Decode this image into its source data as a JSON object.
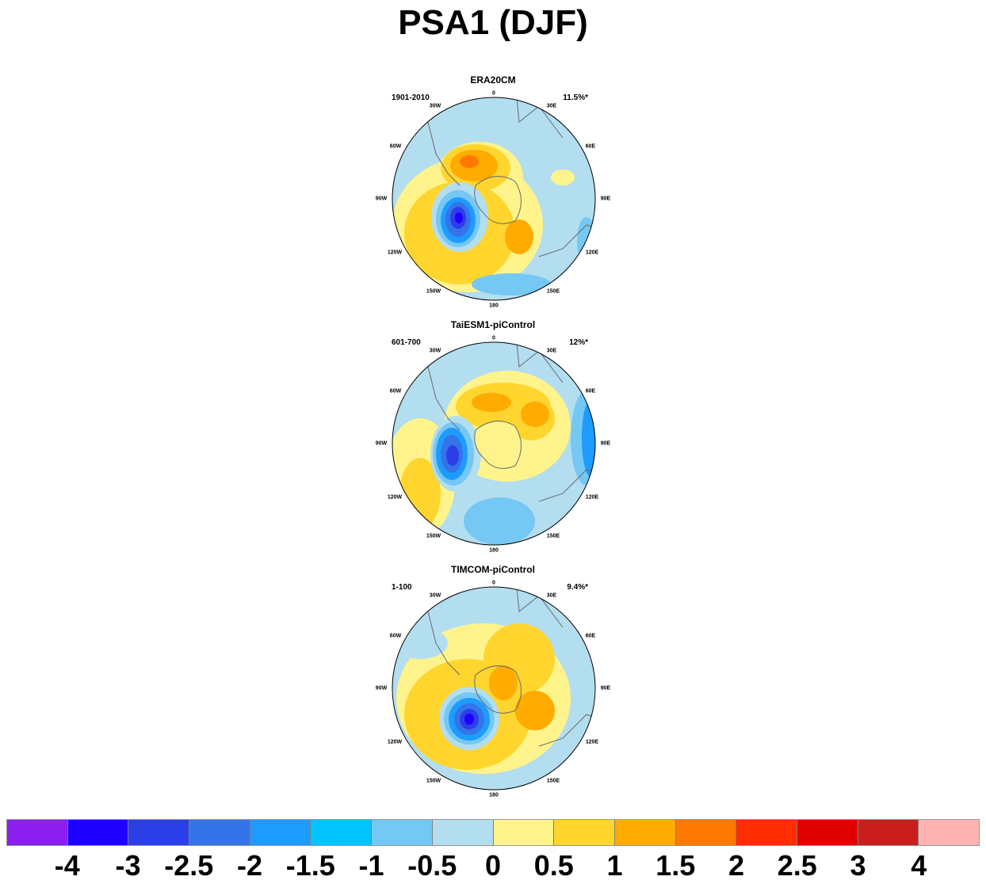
{
  "title": "PSA1 (DJF)",
  "panels": [
    {
      "title": "ERA20CM",
      "period": "1901-2010",
      "percent": "11.5%*"
    },
    {
      "title": "TaiESM1-piControl",
      "period": "601-700",
      "percent": "12%*"
    },
    {
      "title": "TIMCOM-piControl",
      "period": "1-100",
      "percent": "9.4%*"
    }
  ],
  "longitudes": [
    "0",
    "30E",
    "60E",
    "90E",
    "120E",
    "150E",
    "180",
    "150W",
    "120W",
    "90W",
    "60W",
    "30W"
  ],
  "colorbar": {
    "colors": [
      "#8b1ff0",
      "#1d00ff",
      "#2b3fe8",
      "#3574e8",
      "#1e9bff",
      "#00c3ff",
      "#75c8f4",
      "#b3def0",
      "#fff48c",
      "#ffd52e",
      "#ffab00",
      "#ff7900",
      "#ff2d00",
      "#e10000",
      "#c81e1e",
      "#ffb3b3"
    ],
    "labels": [
      "-4",
      "-3",
      "-2.5",
      "-2",
      "-1.5",
      "-1",
      "-0.5",
      "0",
      "0.5",
      "1",
      "1.5",
      "2",
      "2.5",
      "3",
      "4"
    ]
  }
}
